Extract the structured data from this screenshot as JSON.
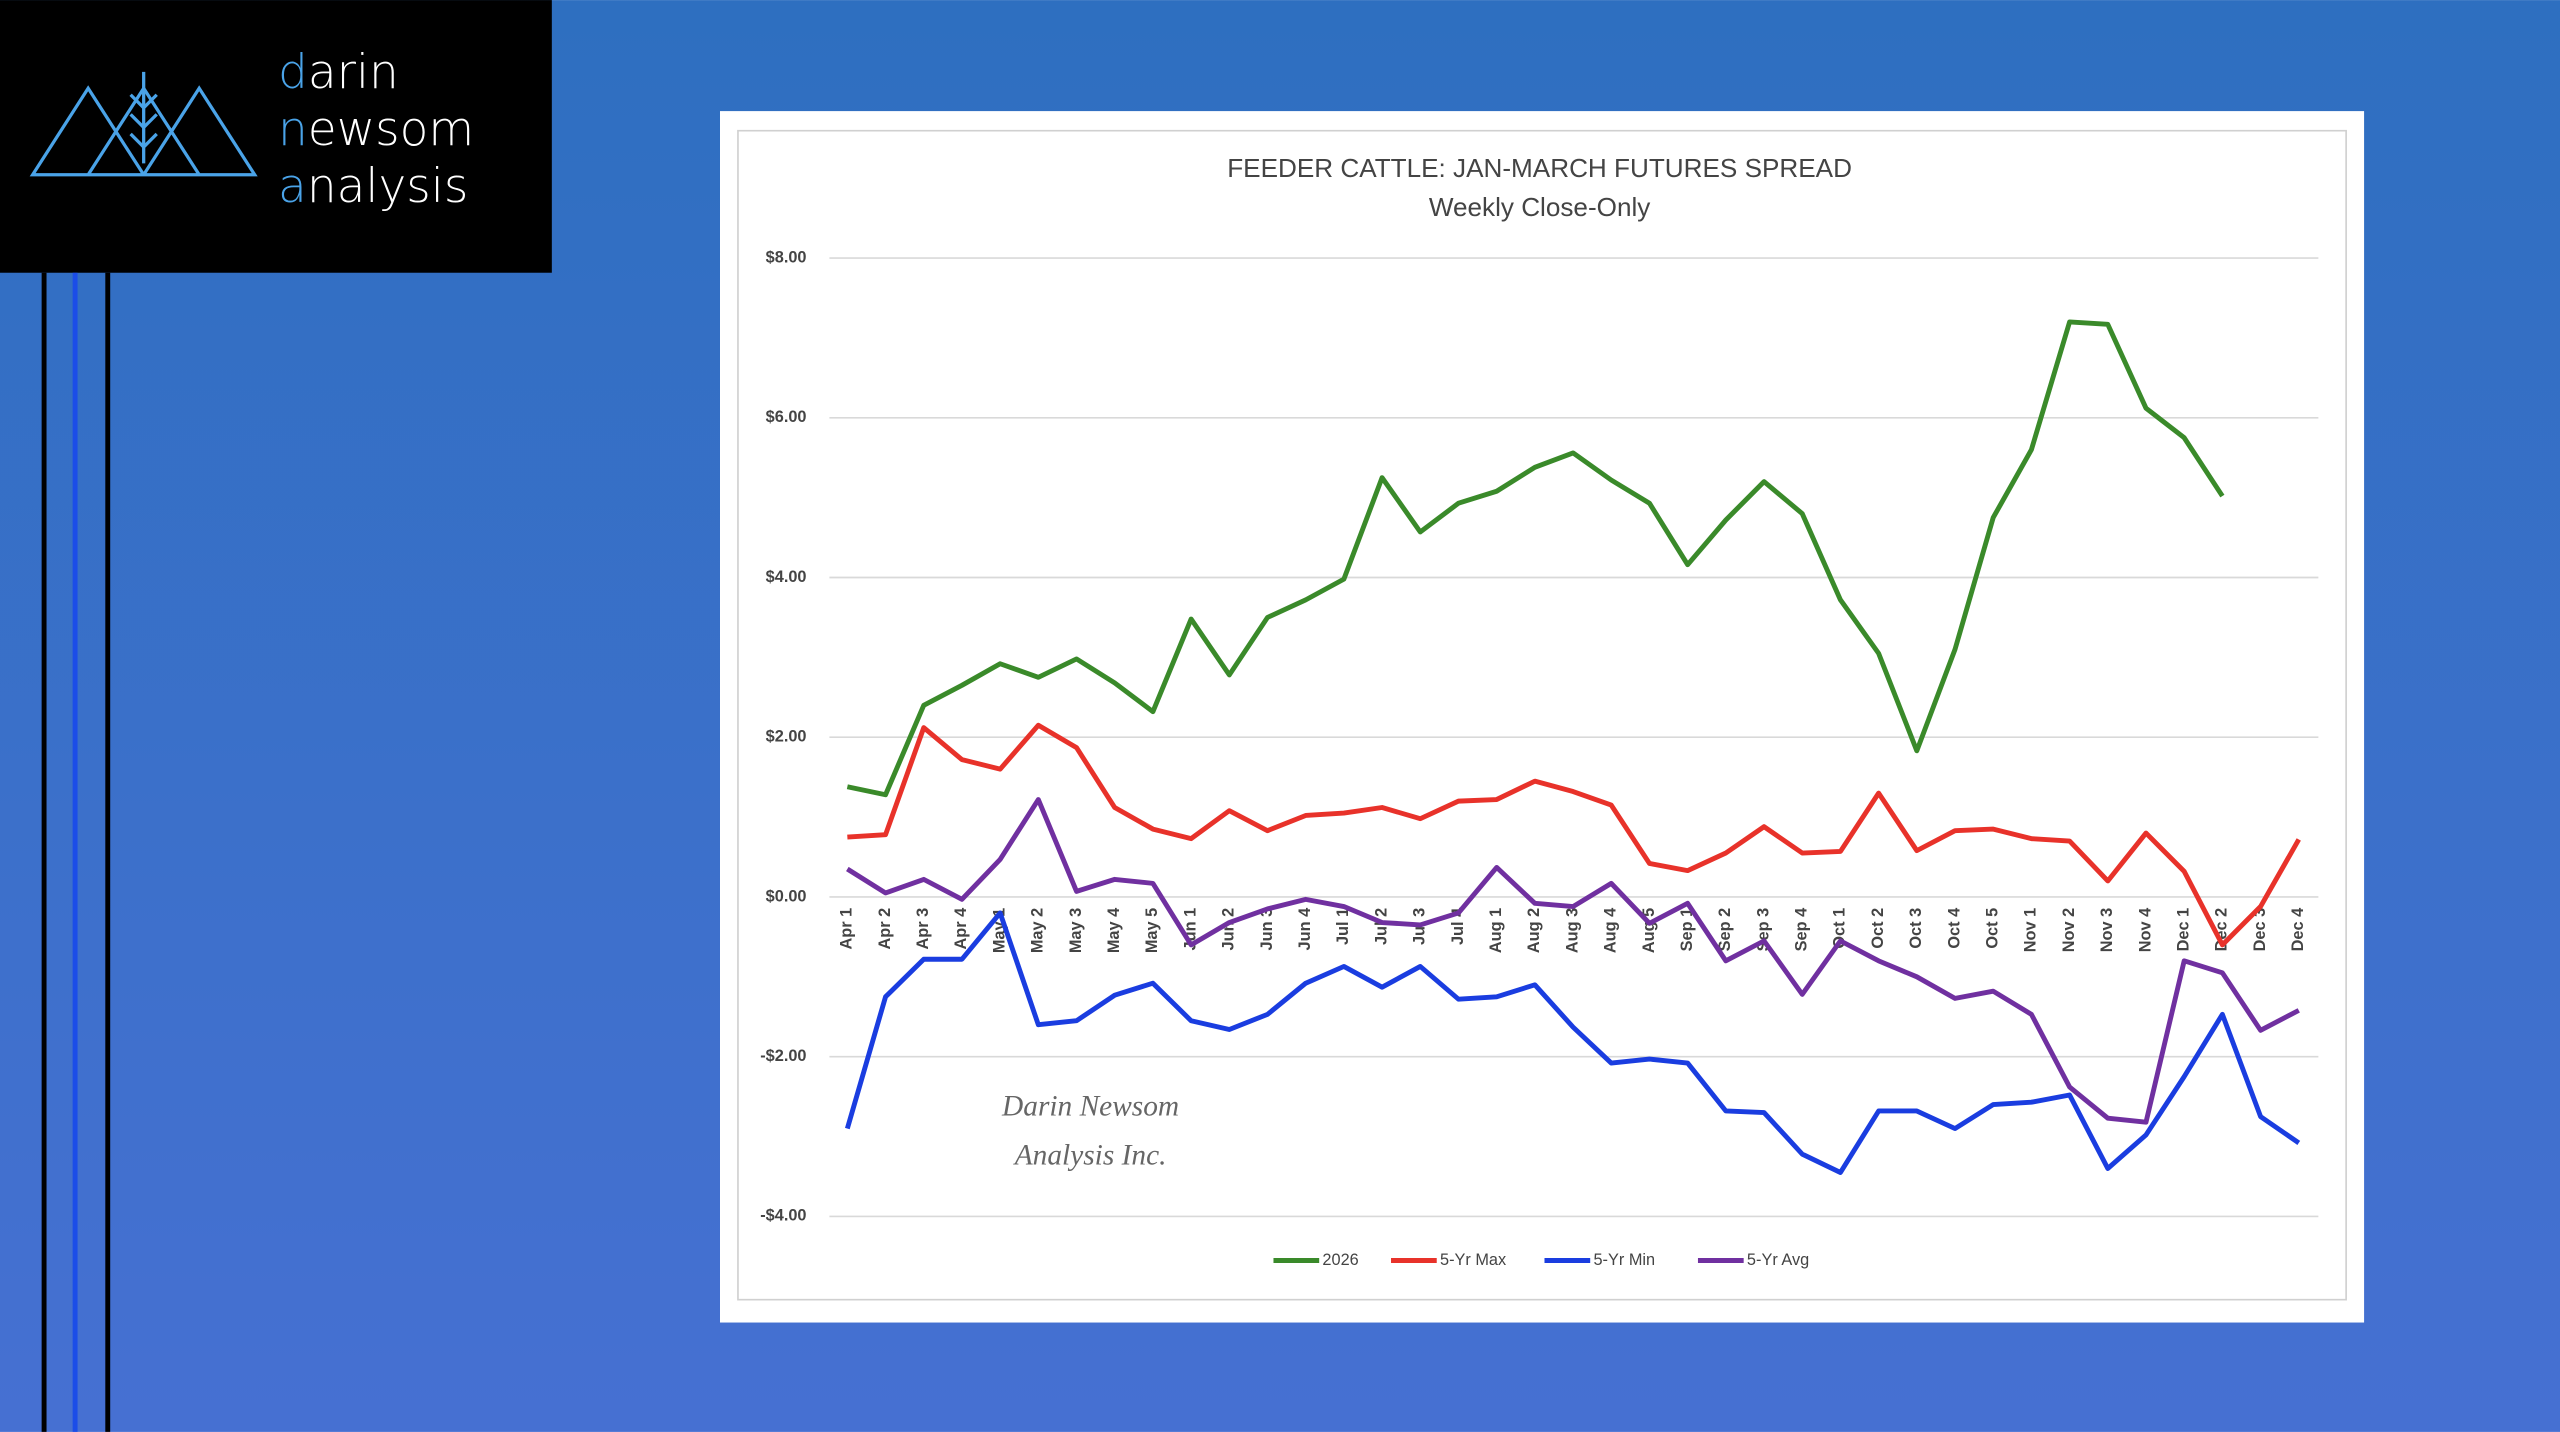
{
  "logo": {
    "lines": [
      "darin",
      "newsom",
      "analysis"
    ]
  },
  "watermark": {
    "lines": [
      "Darin Newsom",
      "Analysis Inc."
    ]
  },
  "chart_data": {
    "type": "line",
    "title": "FEEDER CATTLE: JAN-MARCH FUTURES SPREAD",
    "subtitle": "Weekly Close-Only",
    "categories": [
      "Apr 1",
      "Apr 2",
      "Apr 3",
      "Apr 4",
      "May 1",
      "May 2",
      "May 3",
      "May 4",
      "May 5",
      "Jun 1",
      "Jun 2",
      "Jun 3",
      "Jun 4",
      "Jul 1",
      "Jul 2",
      "Jul 3",
      "Jul 4",
      "Aug 1",
      "Aug 2",
      "Aug 3",
      "Aug 4",
      "Aug 5",
      "Sep 1",
      "Sep 2",
      "Sep 3",
      "Sep 4",
      "Oct 1",
      "Oct 2",
      "Oct 3",
      "Oct 4",
      "Oct 5",
      "Nov 1",
      "Nov 2",
      "Nov 3",
      "Nov 4",
      "Dec 1",
      "Dec 2",
      "Dec 3",
      "Dec 4"
    ],
    "series": [
      {
        "name": "2026",
        "color": "#3a8a2a",
        "values": [
          1.38,
          1.28,
          2.4,
          2.65,
          2.92,
          2.75,
          2.98,
          2.68,
          2.32,
          3.48,
          2.78,
          3.5,
          3.72,
          3.98,
          5.25,
          4.57,
          4.93,
          5.08,
          5.38,
          5.56,
          5.22,
          4.93,
          4.16,
          4.72,
          5.2,
          4.8,
          3.72,
          3.05,
          1.83,
          3.1,
          4.75,
          5.6,
          7.2,
          7.17,
          6.12,
          5.75,
          5.02,
          null,
          null
        ]
      },
      {
        "name": "5-Yr Max",
        "color": "#e8322a",
        "values": [
          0.75,
          0.78,
          2.12,
          1.72,
          1.6,
          2.15,
          1.87,
          1.12,
          0.85,
          0.73,
          1.08,
          0.83,
          1.02,
          1.05,
          1.12,
          0.98,
          1.2,
          1.22,
          1.45,
          1.32,
          1.15,
          0.42,
          0.33,
          0.55,
          0.88,
          0.55,
          0.57,
          1.3,
          0.58,
          0.83,
          0.85,
          0.73,
          0.7,
          0.2,
          0.8,
          0.32,
          -0.6,
          -0.12,
          0.72
        ]
      },
      {
        "name": "5-Yr Min",
        "color": "#1a3de0",
        "values": [
          -2.9,
          -1.25,
          -0.78,
          -0.78,
          -0.2,
          -1.6,
          -1.55,
          -1.23,
          -1.08,
          -1.55,
          -1.66,
          -1.47,
          -1.08,
          -0.87,
          -1.13,
          -0.87,
          -1.28,
          -1.25,
          -1.1,
          -1.63,
          -2.08,
          -2.03,
          -2.08,
          -2.68,
          -2.7,
          -3.22,
          -3.45,
          -2.68,
          -2.68,
          -2.9,
          -2.6,
          -2.57,
          -2.48,
          -3.4,
          -2.98,
          -2.25,
          -1.47,
          -2.75,
          -3.08
        ]
      },
      {
        "name": "5-Yr Avg",
        "color": "#7030a0",
        "values": [
          0.35,
          0.05,
          0.22,
          -0.03,
          0.47,
          1.22,
          0.07,
          0.22,
          0.17,
          -0.6,
          -0.32,
          -0.15,
          -0.03,
          -0.12,
          -0.32,
          -0.35,
          -0.2,
          0.37,
          -0.08,
          -0.12,
          0.17,
          -0.33,
          -0.08,
          -0.8,
          -0.55,
          -1.22,
          -0.55,
          -0.8,
          -1.0,
          -1.27,
          -1.18,
          -1.47,
          -2.38,
          -2.77,
          -2.82,
          -0.8,
          -0.95,
          -1.67,
          -1.42
        ]
      }
    ],
    "ylim": [
      -4,
      8
    ],
    "yticks": [
      {
        "value": -4,
        "label": "-$4.00"
      },
      {
        "value": -2,
        "label": "-$2.00"
      },
      {
        "value": 0,
        "label": "$0.00"
      },
      {
        "value": 2,
        "label": "$2.00"
      },
      {
        "value": 4,
        "label": "$4.00"
      },
      {
        "value": 6,
        "label": "$6.00"
      },
      {
        "value": 8,
        "label": "$8.00"
      }
    ],
    "grid": true,
    "legend": "bottom"
  }
}
